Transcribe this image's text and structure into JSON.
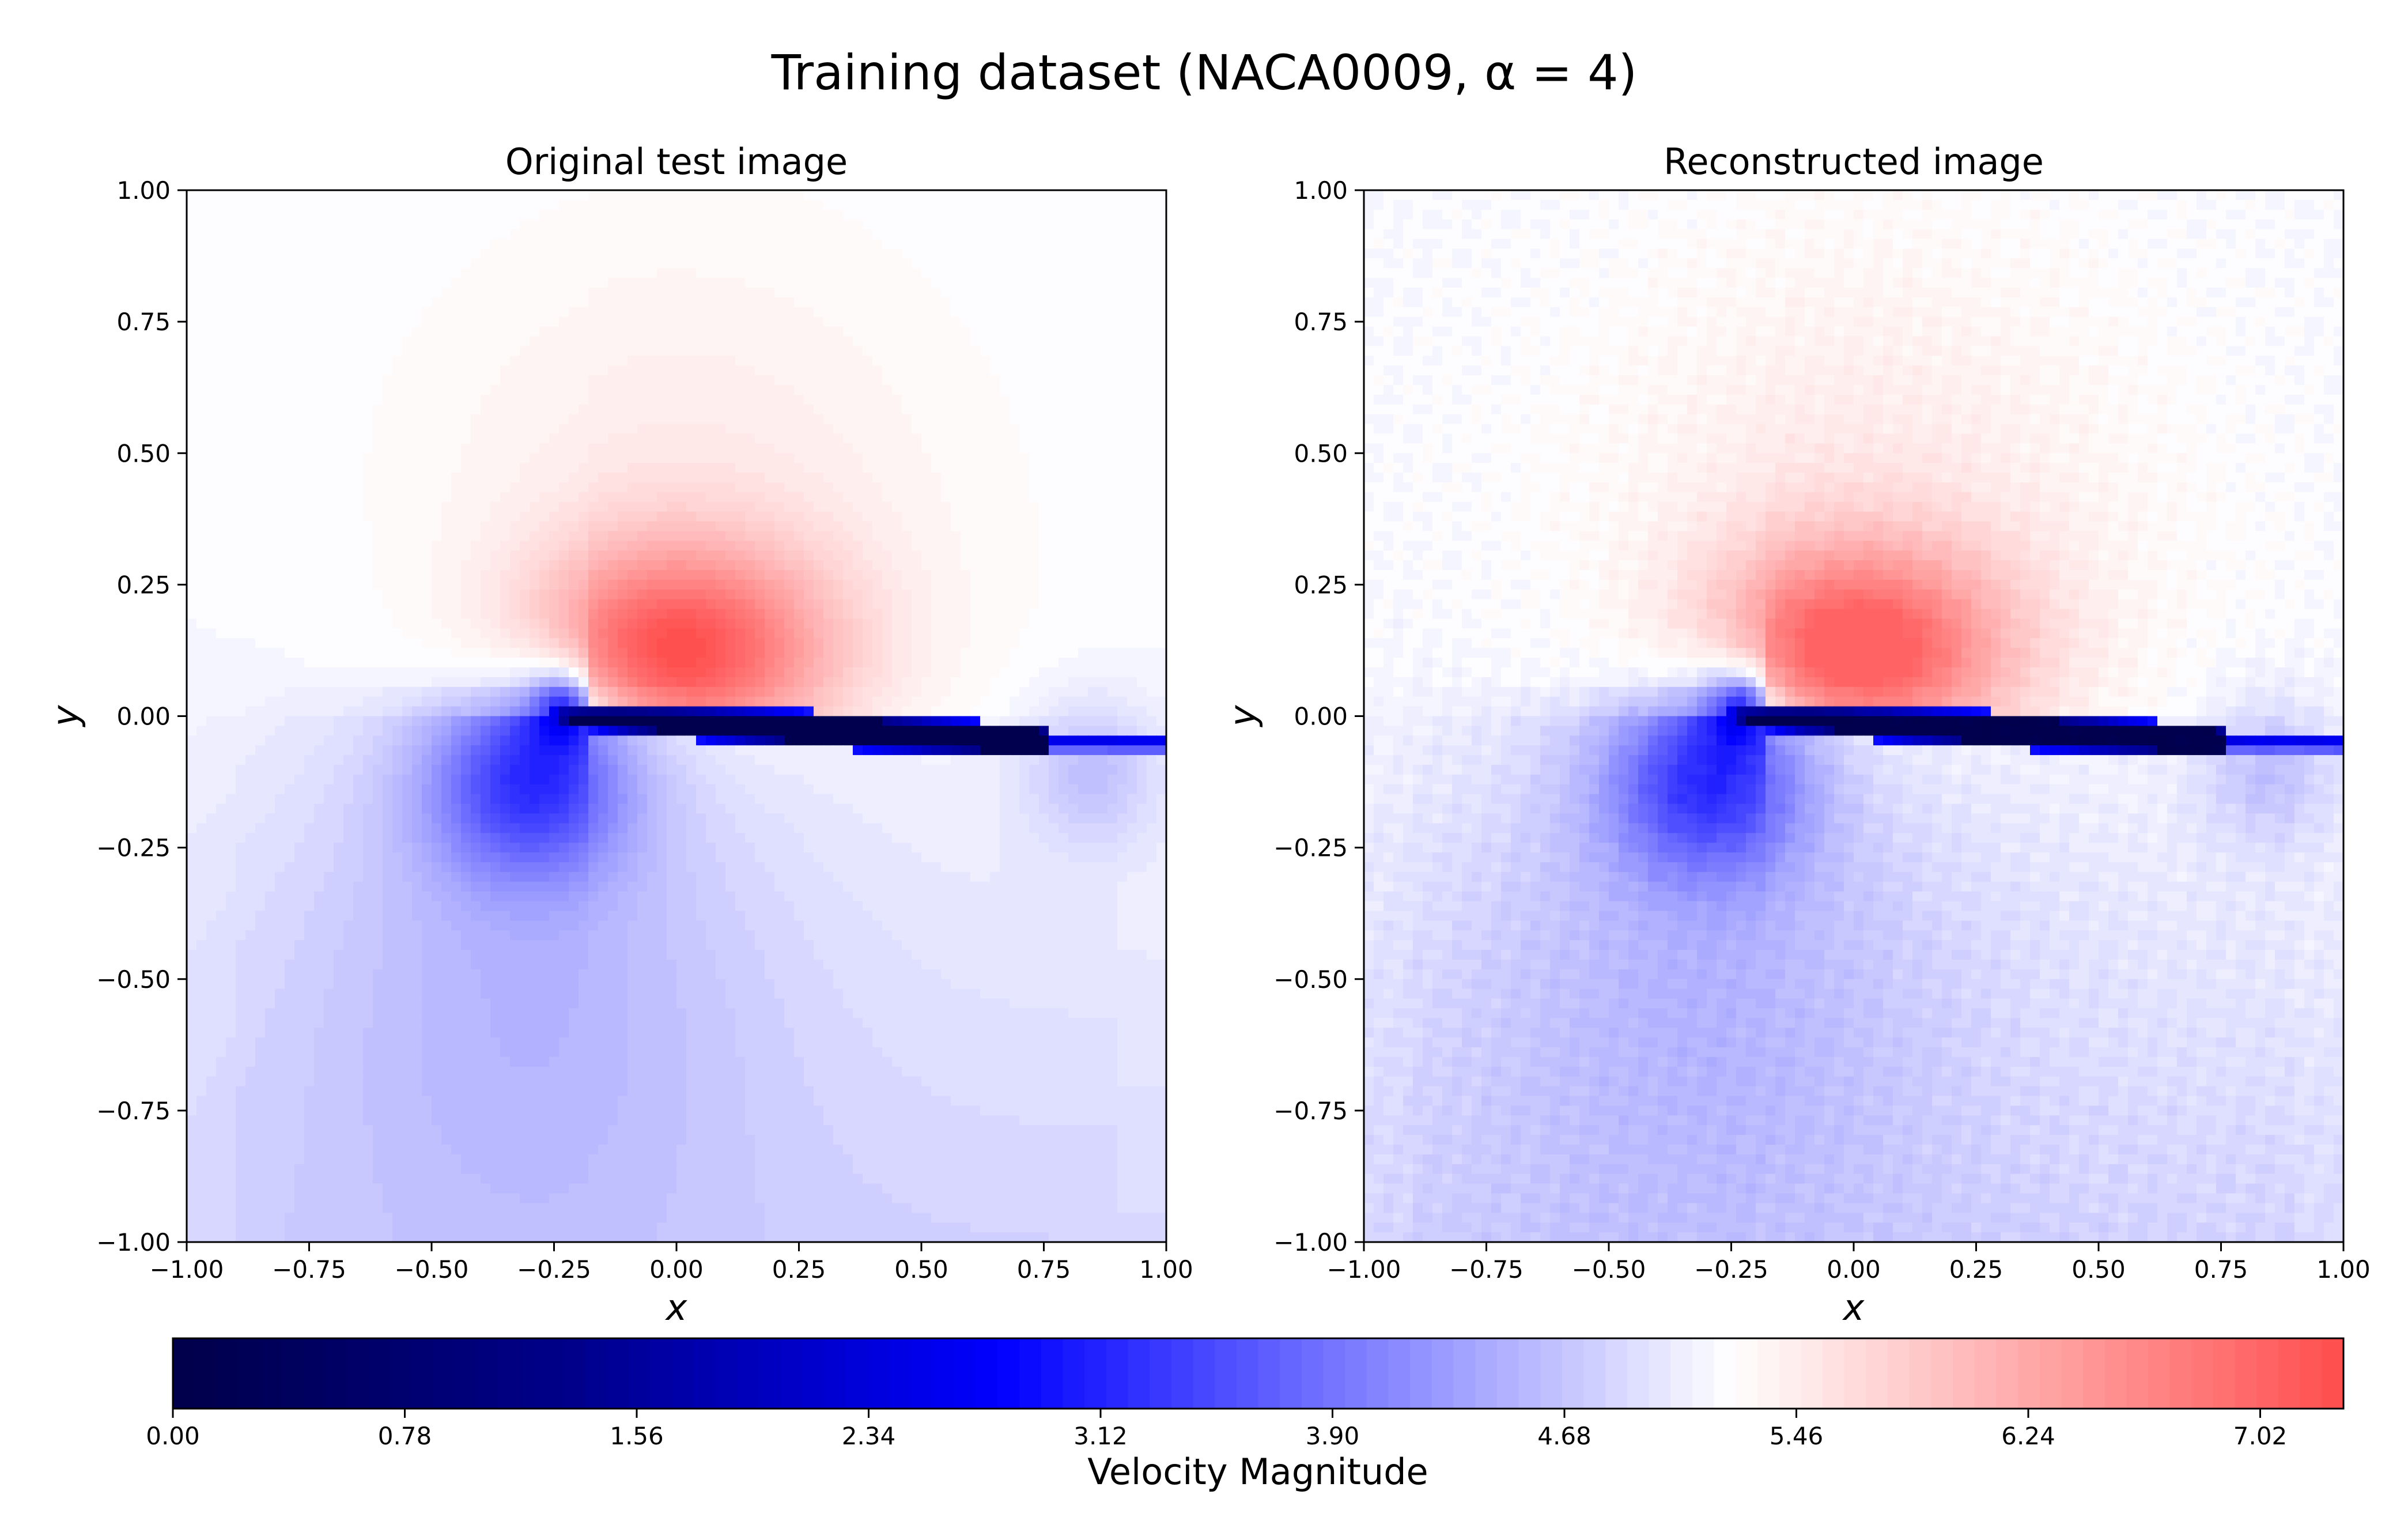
{
  "figure": {
    "title": "Training dataset (NACA0009, α = 4)"
  },
  "chart_data": [
    {
      "type": "heatmap",
      "title": "Original test image",
      "xlabel": "x",
      "ylabel": "y",
      "xlim": [
        -1.0,
        1.0
      ],
      "ylim": [
        -1.0,
        1.0
      ],
      "xticks": [
        "−1.00",
        "−0.75",
        "−0.50",
        "−0.25",
        "0.00",
        "0.25",
        "0.50",
        "0.75",
        "1.00"
      ],
      "yticks": [
        "−1.00",
        "−0.75",
        "−0.50",
        "−0.25",
        "0.00",
        "0.25",
        "0.50",
        "0.75",
        "1.00"
      ],
      "grid": false,
      "field": {
        "freestream": 5.2,
        "chord": [
          -0.25,
          0.75
        ],
        "angle_of_attack": 4,
        "wake_until": 1.0,
        "max_value": 7.3,
        "min_value": 0.0
      }
    },
    {
      "type": "heatmap",
      "title": "Reconstructed image",
      "xlabel": "x",
      "ylabel": "y",
      "xlim": [
        -1.0,
        1.0
      ],
      "ylim": [
        -1.0,
        1.0
      ],
      "xticks": [
        "−1.00",
        "−0.75",
        "−0.50",
        "−0.25",
        "0.00",
        "0.25",
        "0.50",
        "0.75",
        "1.00"
      ],
      "yticks": [
        "−1.00",
        "−0.75",
        "−0.50",
        "−0.25",
        "0.00",
        "0.25",
        "0.50",
        "0.75",
        "1.00"
      ],
      "grid": false,
      "field": {
        "freestream": 5.2,
        "chord": [
          -0.25,
          0.75
        ],
        "angle_of_attack": 4,
        "wake_until": 1.0,
        "max_value": 7.1,
        "min_value": 0.0
      }
    }
  ],
  "colorbar": {
    "label": "Velocity Magnitude",
    "min": 0.0,
    "max": 7.3,
    "ticks": [
      0.0,
      0.78,
      1.56,
      2.34,
      3.12,
      3.9,
      4.68,
      5.46,
      6.24,
      7.02
    ],
    "tick_labels": [
      "0.00",
      "0.78",
      "1.56",
      "2.34",
      "3.12",
      "3.90",
      "4.68",
      "5.46",
      "6.24",
      "7.02"
    ],
    "colormap": [
      "#00004c",
      "#00008a",
      "#0000ff",
      "#ffffff",
      "#ff5050"
    ],
    "orientation": "horizontal",
    "levels": 100
  }
}
